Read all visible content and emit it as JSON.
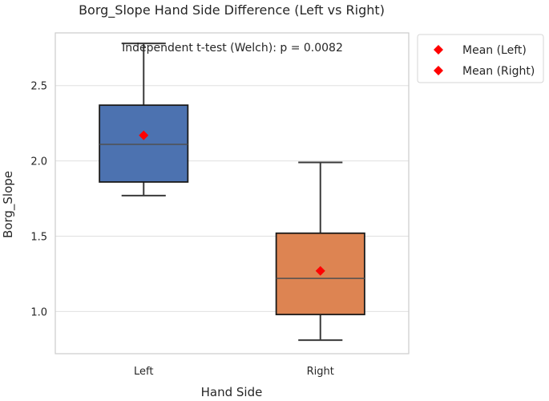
{
  "chart_data": {
    "type": "box",
    "title": "Borg_Slope Hand Side Difference (Left vs Right)",
    "xlabel": "Hand Side",
    "ylabel": "Borg_Slope",
    "categories": [
      "Left",
      "Right"
    ],
    "ylim": [
      0.72,
      2.85
    ],
    "yticks": [
      1.0,
      1.5,
      2.0,
      2.5
    ],
    "ytick_labels": [
      "1.0",
      "1.5",
      "2.0",
      "2.5"
    ],
    "grid": "horizontal",
    "boxes": [
      {
        "category": "Left",
        "whisker_low": 1.77,
        "q1": 1.86,
        "median": 2.11,
        "q3": 2.37,
        "whisker_high": 2.78,
        "mean": 2.17,
        "color": "#4c72b0"
      },
      {
        "category": "Right",
        "whisker_low": 0.81,
        "q1": 0.98,
        "median": 1.22,
        "q3": 1.52,
        "whisker_high": 1.99,
        "mean": 1.27,
        "color": "#dd8452"
      }
    ],
    "annotation": "Independent t-test (Welch): p = 0.0082",
    "legend": {
      "placement": "outside-right",
      "entries": [
        {
          "label": "Mean (Left)",
          "color": "#ff0000",
          "marker": "diamond"
        },
        {
          "label": "Mean (Right)",
          "color": "#ff0000",
          "marker": "diamond"
        }
      ]
    },
    "colors": {
      "mean_marker": "#ff0000",
      "grid": "#e0e0e0",
      "frame": "#cccccc",
      "median": "#505050",
      "whisker": "#3a3a3a"
    }
  }
}
